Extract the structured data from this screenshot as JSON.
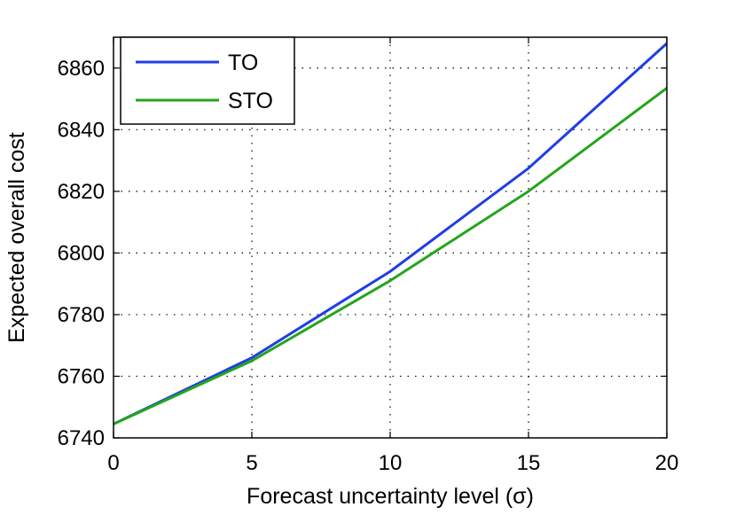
{
  "chart_data": {
    "type": "line",
    "title": "",
    "xlabel": "Forecast uncertainty level (σ)",
    "ylabel": "Expected overall cost",
    "xlim": [
      0,
      20
    ],
    "ylim": [
      6740,
      6870
    ],
    "xticks": [
      0,
      5,
      10,
      15,
      20
    ],
    "yticks": [
      6740,
      6760,
      6780,
      6800,
      6820,
      6840,
      6860
    ],
    "grid": true,
    "legend_position": "top-left",
    "x": [
      0,
      5,
      10,
      15,
      20
    ],
    "series": [
      {
        "name": "TO",
        "color": "#1f3de8",
        "values": [
          6744.5,
          6766,
          6794,
          6827.5,
          6868
        ]
      },
      {
        "name": "STO",
        "color": "#25a51b",
        "values": [
          6744.5,
          6765,
          6791,
          6820,
          6853.5
        ]
      }
    ]
  }
}
